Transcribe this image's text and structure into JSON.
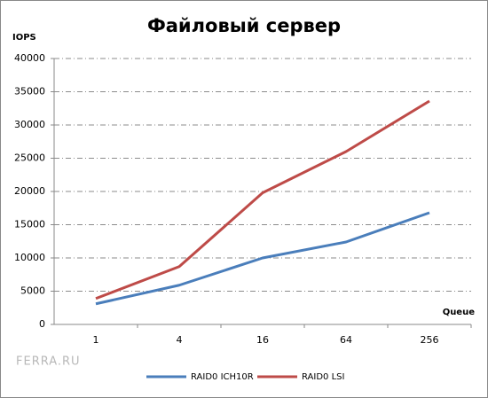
{
  "chart_data": {
    "type": "line",
    "title": "Файловый сервер",
    "y_label": "IOPS",
    "x_label": "Queue",
    "watermark": "FERRA.RU",
    "categories": [
      "1",
      "4",
      "16",
      "64",
      "256"
    ],
    "series": [
      {
        "name": "RAID0 ICH10R",
        "color": "#4a7ebb",
        "values": [
          3100,
          5900,
          10000,
          12400,
          16800
        ]
      },
      {
        "name": "RAID0 LSI",
        "color": "#be4b48",
        "values": [
          3900,
          8700,
          19800,
          26000,
          33600
        ]
      }
    ],
    "ylim": [
      0,
      40000
    ],
    "yticks": [
      0,
      5000,
      10000,
      15000,
      20000,
      25000,
      30000,
      35000,
      40000
    ],
    "grid": true
  }
}
